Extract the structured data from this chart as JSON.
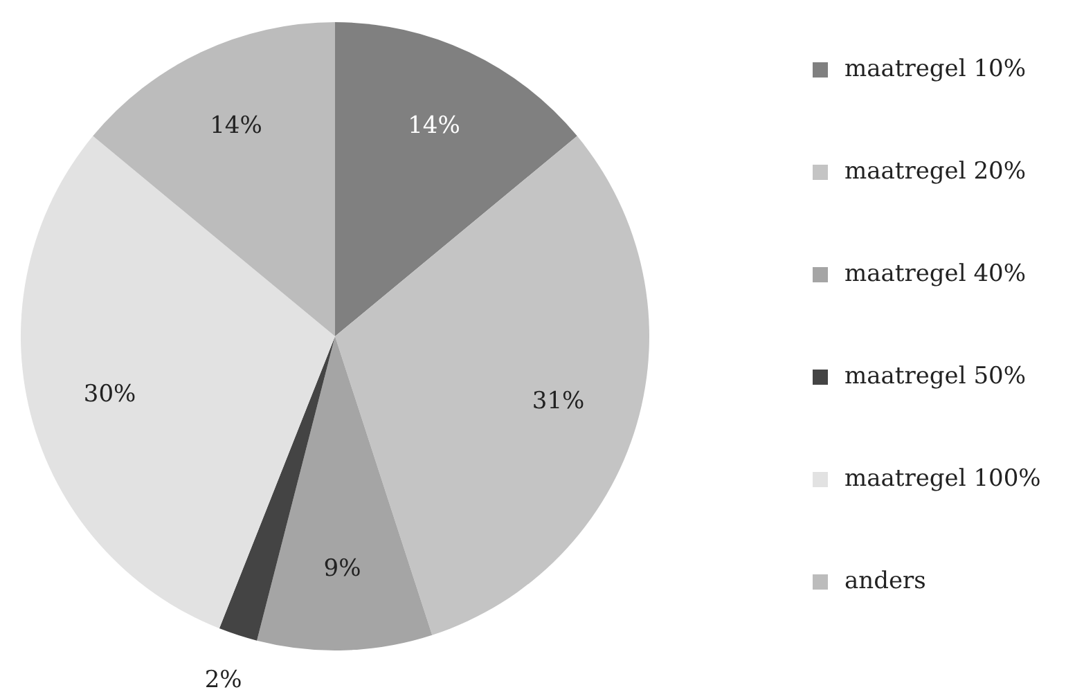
{
  "chart_data": {
    "type": "pie",
    "categories": [
      "maatregel 10%",
      "maatregel 20%",
      "maatregel 40%",
      "maatregel 50%",
      "maatregel 100%",
      "anders"
    ],
    "values": [
      14,
      31,
      9,
      2,
      30,
      14
    ],
    "colors": [
      "#808080",
      "#c4c4c4",
      "#a5a5a5",
      "#444444",
      "#e2e2e2",
      "#bcbcbc"
    ],
    "value_labels": [
      "14%",
      "31%",
      "9%",
      "2%",
      "30%",
      "14%"
    ],
    "legend": "right"
  }
}
